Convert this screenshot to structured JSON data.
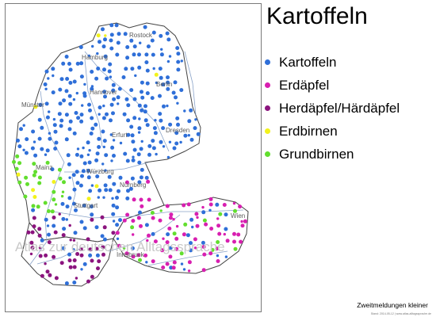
{
  "title": "Kartoffeln",
  "legend": [
    {
      "label": "Kartoffeln",
      "color": "#2f6fd8"
    },
    {
      "label": "Erdäpfel",
      "color": "#d81fb0"
    },
    {
      "label": "Herdäpfel/Härdäpfel",
      "color": "#8b147e"
    },
    {
      "label": "Erdbirnen",
      "color": "#f2f21c"
    },
    {
      "label": "Grundbirnen",
      "color": "#62de2e"
    }
  ],
  "cities": [
    "Rostock",
    "Hamburg",
    "Berlin",
    "Hannover",
    "Münster",
    "Dresden",
    "Erfurt",
    "Mainz",
    "Würzburg",
    "Nürnberg",
    "Stuttgart",
    "Wien",
    "Innsbruck"
  ],
  "watermark": "Atlas zur deutschen Alltagssprache",
  "footnote": "Zweitmeldungen kleiner",
  "footnote_small": "Stand: 2014-05-12 | www.atlas-alltagssprache.de"
}
